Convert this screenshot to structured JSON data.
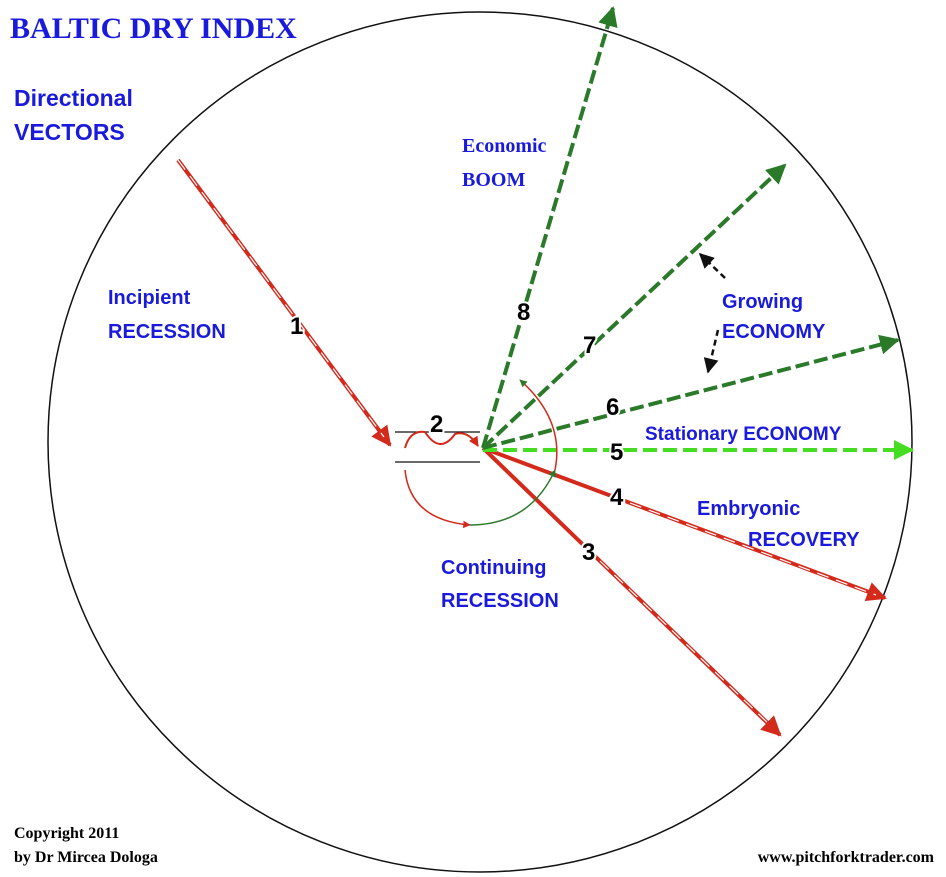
{
  "title": "BALTIC DRY INDEX",
  "heading": {
    "line1": "Directional",
    "line2": "VECTORS"
  },
  "zones": {
    "boom": {
      "line1": "Economic",
      "line2": "BOOM"
    },
    "incipient": {
      "line1": "Incipient",
      "line2": "RECESSION"
    },
    "growing": {
      "line1": "Growing",
      "line2": "ECONOMY"
    },
    "stationary": {
      "line1": "Stationary ECONOMY"
    },
    "embryonic": {
      "line1": "Embryonic",
      "line2": "RECOVERY"
    },
    "continuing": {
      "line1": "Continuing",
      "line2": "RECESSION"
    }
  },
  "vector_numbers": [
    "1",
    "2",
    "3",
    "4",
    "5",
    "6",
    "7",
    "8"
  ],
  "footer": {
    "copyright": "Copyright 2011",
    "author": "by Dr Mircea Dologa",
    "website": "www.pitchforktrader.com"
  }
}
